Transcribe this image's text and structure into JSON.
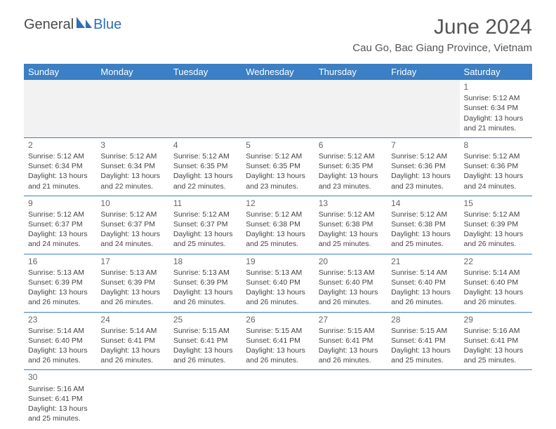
{
  "logo": {
    "text_left": "General",
    "text_right": "Blue",
    "shape_color": "#2f6fb3"
  },
  "title": "June 2024",
  "location": "Cau Go, Bac Giang Province, Vietnam",
  "header_bg": "#3b7fc4",
  "header_text_color": "#ffffff",
  "border_color": "#3b7fc4",
  "blank_bg": "#f2f2f2",
  "weekdays": [
    "Sunday",
    "Monday",
    "Tuesday",
    "Wednesday",
    "Thursday",
    "Friday",
    "Saturday"
  ],
  "font_family": "Arial",
  "title_fontsize": 30,
  "location_fontsize": 15,
  "cell_fontsize": 10.5,
  "first_weekday_index": 6,
  "days": [
    {
      "n": 1,
      "sunrise": "5:12 AM",
      "sunset": "6:34 PM",
      "daylight": "13 hours and 21 minutes."
    },
    {
      "n": 2,
      "sunrise": "5:12 AM",
      "sunset": "6:34 PM",
      "daylight": "13 hours and 21 minutes."
    },
    {
      "n": 3,
      "sunrise": "5:12 AM",
      "sunset": "6:34 PM",
      "daylight": "13 hours and 22 minutes."
    },
    {
      "n": 4,
      "sunrise": "5:12 AM",
      "sunset": "6:35 PM",
      "daylight": "13 hours and 22 minutes."
    },
    {
      "n": 5,
      "sunrise": "5:12 AM",
      "sunset": "6:35 PM",
      "daylight": "13 hours and 23 minutes."
    },
    {
      "n": 6,
      "sunrise": "5:12 AM",
      "sunset": "6:35 PM",
      "daylight": "13 hours and 23 minutes."
    },
    {
      "n": 7,
      "sunrise": "5:12 AM",
      "sunset": "6:36 PM",
      "daylight": "13 hours and 23 minutes."
    },
    {
      "n": 8,
      "sunrise": "5:12 AM",
      "sunset": "6:36 PM",
      "daylight": "13 hours and 24 minutes."
    },
    {
      "n": 9,
      "sunrise": "5:12 AM",
      "sunset": "6:37 PM",
      "daylight": "13 hours and 24 minutes."
    },
    {
      "n": 10,
      "sunrise": "5:12 AM",
      "sunset": "6:37 PM",
      "daylight": "13 hours and 24 minutes."
    },
    {
      "n": 11,
      "sunrise": "5:12 AM",
      "sunset": "6:37 PM",
      "daylight": "13 hours and 25 minutes."
    },
    {
      "n": 12,
      "sunrise": "5:12 AM",
      "sunset": "6:38 PM",
      "daylight": "13 hours and 25 minutes."
    },
    {
      "n": 13,
      "sunrise": "5:12 AM",
      "sunset": "6:38 PM",
      "daylight": "13 hours and 25 minutes."
    },
    {
      "n": 14,
      "sunrise": "5:12 AM",
      "sunset": "6:38 PM",
      "daylight": "13 hours and 25 minutes."
    },
    {
      "n": 15,
      "sunrise": "5:12 AM",
      "sunset": "6:39 PM",
      "daylight": "13 hours and 26 minutes."
    },
    {
      "n": 16,
      "sunrise": "5:13 AM",
      "sunset": "6:39 PM",
      "daylight": "13 hours and 26 minutes."
    },
    {
      "n": 17,
      "sunrise": "5:13 AM",
      "sunset": "6:39 PM",
      "daylight": "13 hours and 26 minutes."
    },
    {
      "n": 18,
      "sunrise": "5:13 AM",
      "sunset": "6:39 PM",
      "daylight": "13 hours and 26 minutes."
    },
    {
      "n": 19,
      "sunrise": "5:13 AM",
      "sunset": "6:40 PM",
      "daylight": "13 hours and 26 minutes."
    },
    {
      "n": 20,
      "sunrise": "5:13 AM",
      "sunset": "6:40 PM",
      "daylight": "13 hours and 26 minutes."
    },
    {
      "n": 21,
      "sunrise": "5:14 AM",
      "sunset": "6:40 PM",
      "daylight": "13 hours and 26 minutes."
    },
    {
      "n": 22,
      "sunrise": "5:14 AM",
      "sunset": "6:40 PM",
      "daylight": "13 hours and 26 minutes."
    },
    {
      "n": 23,
      "sunrise": "5:14 AM",
      "sunset": "6:40 PM",
      "daylight": "13 hours and 26 minutes."
    },
    {
      "n": 24,
      "sunrise": "5:14 AM",
      "sunset": "6:41 PM",
      "daylight": "13 hours and 26 minutes."
    },
    {
      "n": 25,
      "sunrise": "5:15 AM",
      "sunset": "6:41 PM",
      "daylight": "13 hours and 26 minutes."
    },
    {
      "n": 26,
      "sunrise": "5:15 AM",
      "sunset": "6:41 PM",
      "daylight": "13 hours and 26 minutes."
    },
    {
      "n": 27,
      "sunrise": "5:15 AM",
      "sunset": "6:41 PM",
      "daylight": "13 hours and 26 minutes."
    },
    {
      "n": 28,
      "sunrise": "5:15 AM",
      "sunset": "6:41 PM",
      "daylight": "13 hours and 25 minutes."
    },
    {
      "n": 29,
      "sunrise": "5:16 AM",
      "sunset": "6:41 PM",
      "daylight": "13 hours and 25 minutes."
    },
    {
      "n": 30,
      "sunrise": "5:16 AM",
      "sunset": "6:41 PM",
      "daylight": "13 hours and 25 minutes."
    }
  ],
  "labels": {
    "sunrise": "Sunrise:",
    "sunset": "Sunset:",
    "daylight": "Daylight:"
  }
}
